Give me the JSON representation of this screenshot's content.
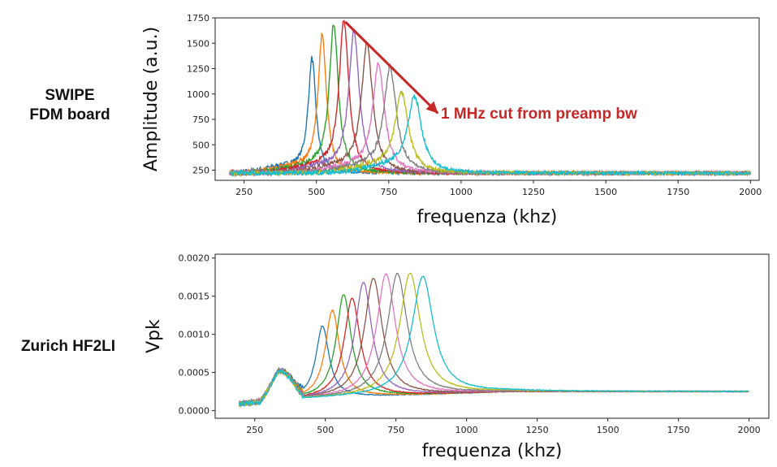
{
  "labels": {
    "top": [
      "SWIPE",
      "FDM board"
    ],
    "bottom": "Zurich HF2LI"
  },
  "colors": [
    "#1f77b4",
    "#ff7f0e",
    "#2ca02c",
    "#d62728",
    "#9467bd",
    "#8c564b",
    "#e377c2",
    "#7f7f7f",
    "#bcbd22",
    "#17becf"
  ],
  "annotation_color": "#c62828",
  "chart_data": [
    {
      "type": "line",
      "title": "",
      "xlabel": "frequenza (khz)",
      "ylabel": "Amplitude (a.u.)",
      "xlim": [
        150,
        2030
      ],
      "ylim": [
        150,
        1750
      ],
      "xticks": [
        250,
        500,
        750,
        1000,
        1250,
        1500,
        1750,
        2000
      ],
      "yticks": [
        250,
        500,
        750,
        1000,
        1250,
        1500,
        1750
      ],
      "x_range": [
        200,
        2000
      ],
      "baseline": 220,
      "noise": 28,
      "annotation": {
        "text": "1 MHz cut from preamp bw",
        "arrow_from": [
          600,
          1710
        ],
        "arrow_to": [
          920,
          810
        ],
        "text_at": [
          930,
          815
        ]
      },
      "series": [
        {
          "peak": 485,
          "amp": 1330
        },
        {
          "peak": 520,
          "amp": 1560
        },
        {
          "peak": 560,
          "amp": 1680
        },
        {
          "peak": 595,
          "amp": 1700
        },
        {
          "peak": 630,
          "amp": 1600
        },
        {
          "peak": 675,
          "amp": 1480
        },
        {
          "peak": 715,
          "amp": 1280
        },
        {
          "peak": 755,
          "amp": 1240
        },
        {
          "peak": 795,
          "amp": 1000
        },
        {
          "peak": 840,
          "amp": 960
        }
      ]
    },
    {
      "type": "line",
      "title": "",
      "xlabel": "frequenza (khz)",
      "ylabel": "Vpk",
      "xlim": [
        110,
        2070
      ],
      "ylim": [
        -0.0001,
        0.00205
      ],
      "xticks": [
        250,
        500,
        750,
        1000,
        1250,
        1500,
        1750,
        2000
      ],
      "yticks": [
        0.0,
        0.0005,
        0.001,
        0.0015,
        0.002
      ],
      "ytick_labels": [
        "0.0000",
        "0.0005",
        "0.0010",
        "0.0015",
        "0.0020"
      ],
      "x_range": [
        195,
        2000
      ],
      "hump": {
        "center": 340,
        "amp": 0.00045
      },
      "tail_end": 0.00012,
      "series": [
        {
          "peak": 490,
          "amp": 0.00125
        },
        {
          "peak": 525,
          "amp": 0.00145
        },
        {
          "peak": 565,
          "amp": 0.00165
        },
        {
          "peak": 595,
          "amp": 0.0016
        },
        {
          "peak": 635,
          "amp": 0.0018
        },
        {
          "peak": 670,
          "amp": 0.00185
        },
        {
          "peak": 715,
          "amp": 0.0019
        },
        {
          "peak": 755,
          "amp": 0.0019
        },
        {
          "peak": 800,
          "amp": 0.0019
        },
        {
          "peak": 845,
          "amp": 0.00185
        }
      ]
    }
  ]
}
